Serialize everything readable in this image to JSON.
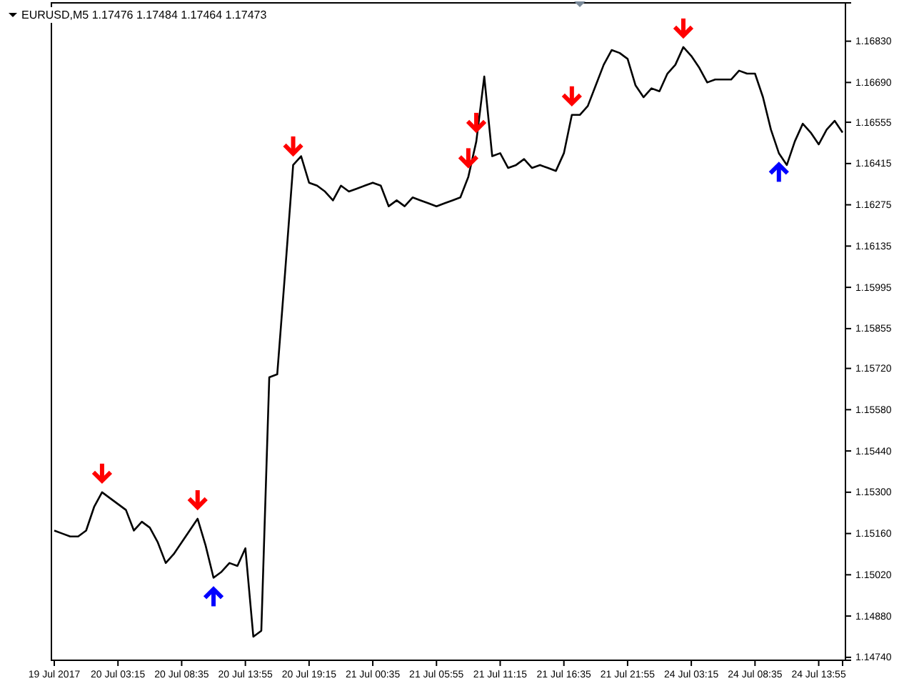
{
  "chart_data": {
    "type": "line",
    "title": "EURUSD,M5  1.17476 1.17484 1.17464 1.17473",
    "categories": [
      "19 Jul 2017",
      null,
      null,
      null,
      null,
      null,
      null,
      null,
      "20 Jul 03:15",
      null,
      null,
      null,
      null,
      null,
      null,
      null,
      "20 Jul 08:35",
      null,
      null,
      null,
      null,
      null,
      null,
      null,
      "20 Jul 13:55",
      null,
      null,
      null,
      null,
      null,
      null,
      null,
      "20 Jul 19:15",
      null,
      null,
      null,
      null,
      null,
      null,
      null,
      "21 Jul 00:35",
      null,
      null,
      null,
      null,
      null,
      null,
      null,
      "21 Jul 05:55",
      null,
      null,
      null,
      null,
      null,
      null,
      null,
      "21 Jul 11:15",
      null,
      null,
      null,
      null,
      null,
      null,
      null,
      "21 Jul 16:35",
      null,
      null,
      null,
      null,
      null,
      null,
      null,
      "21 Jul 21:55",
      null,
      null,
      null,
      null,
      null,
      null,
      null,
      "24 Jul 03:15",
      null,
      null,
      null,
      null,
      null,
      null,
      null,
      "24 Jul 08:35",
      null,
      null,
      null,
      null,
      null,
      null,
      null,
      "24 Jul 13:55",
      null,
      null,
      null
    ],
    "series": [
      {
        "color": "#000000",
        "values": [
          1.1517,
          1.1516,
          1.1515,
          1.1515,
          1.1517,
          1.1525,
          1.153,
          1.1528,
          1.1526,
          1.1524,
          1.1517,
          1.152,
          1.1518,
          1.1513,
          1.1506,
          1.1509,
          1.1513,
          1.1517,
          1.1521,
          1.1512,
          1.1501,
          1.1503,
          1.1506,
          1.1505,
          1.1511,
          1.1481,
          1.1483,
          1.1569,
          1.157,
          1.1605,
          1.1641,
          1.1644,
          1.1635,
          1.1634,
          1.1632,
          1.1629,
          1.1634,
          1.1632,
          1.1633,
          1.1634,
          1.1635,
          1.1634,
          1.1627,
          1.1629,
          1.1627,
          1.163,
          1.1629,
          1.1628,
          1.1627,
          1.1628,
          1.1629,
          1.163,
          1.1637,
          1.1649,
          1.1671,
          1.1644,
          1.1645,
          1.164,
          1.1641,
          1.1643,
          1.164,
          1.1641,
          1.164,
          1.1639,
          1.1645,
          1.1658,
          1.1658,
          1.1661,
          1.1668,
          1.1675,
          1.168,
          1.1679,
          1.1677,
          1.1668,
          1.1664,
          1.1667,
          1.1666,
          1.1672,
          1.1675,
          1.1681,
          1.1678,
          1.1674,
          1.1669,
          1.167,
          1.167,
          1.167,
          1.1673,
          1.1672,
          1.1672,
          1.1664,
          1.1653,
          1.1645,
          1.1641,
          1.1649,
          1.1655,
          1.1652,
          1.1648,
          1.1653,
          1.1656,
          1.1652
        ]
      }
    ],
    "ylim": [
      1.1473,
      1.1696
    ],
    "yticks": [
      {
        "value": 1.1474,
        "label": "1.14740"
      },
      {
        "value": 1.1488,
        "label": "1.14880"
      },
      {
        "value": 1.1502,
        "label": "1.15020"
      },
      {
        "value": 1.1516,
        "label": "1.15160"
      },
      {
        "value": 1.153,
        "label": "1.15300"
      },
      {
        "value": 1.1544,
        "label": "1.15440"
      },
      {
        "value": 1.1558,
        "label": "1.15580"
      },
      {
        "value": 1.1572,
        "label": "1.15720"
      },
      1.15855,
      1.15995,
      1.16135,
      1.16275,
      1.16415,
      1.16555,
      {
        "value": 1.1669,
        "label": "1.16690"
      },
      {
        "value": 1.1683,
        "label": "1.16830"
      }
    ],
    "grid": false,
    "marker": "none",
    "line_style": "solid"
  }
}
